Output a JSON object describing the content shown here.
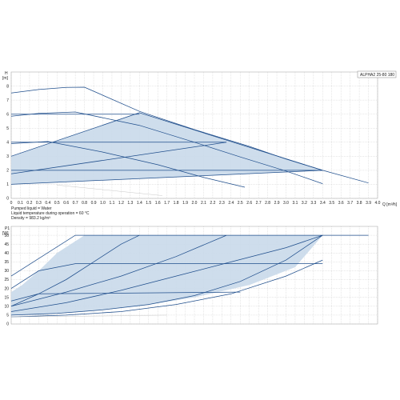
{
  "info": {
    "pumped_liquid": "Pumped liquid = Water",
    "liquid_temperature": "Liquid temperature during operation = 60 °C",
    "density": "Density = 983.2 kg/m³"
  },
  "colors": {
    "curve": "#1f4e8c",
    "fill": "#c9d9ea",
    "grid": "#b0b0b0",
    "faint": "#c8c8c8"
  },
  "chart_data": [
    {
      "type": "line",
      "model_label": "ALPHA2 25-80 180",
      "ylabel_top": "H",
      "ylabel_unit": "[m]",
      "xlabel": "Q [m³/h]",
      "xlim": [
        0,
        4.0
      ],
      "ylim": [
        0,
        9
      ],
      "x_ticks": [
        "0",
        "0.1",
        "0.2",
        "0.3",
        "0.4",
        "0.5",
        "0.6",
        "0.7",
        "0.8",
        "0.9",
        "1.0",
        "1.1",
        "1.2",
        "1.3",
        "1.4",
        "1.5",
        "1.6",
        "1.7",
        "1.8",
        "1.9",
        "2.0",
        "2.1",
        "2.2",
        "2.3",
        "2.4",
        "2.5",
        "2.6",
        "2.7",
        "2.8",
        "2.9",
        "3.0",
        "3.1",
        "3.2",
        "3.3",
        "3.4",
        "3.5",
        "3.6",
        "3.7",
        "3.8",
        "3.9",
        "4.0"
      ],
      "y_ticks": [
        "0",
        "1",
        "2",
        "3",
        "4",
        "5",
        "6",
        "7",
        "8"
      ],
      "grid": true,
      "shaded_area": [
        [
          0,
          1.0
        ],
        [
          3.4,
          2.0
        ],
        [
          1.4,
          6.1
        ],
        [
          0,
          3.0
        ]
      ],
      "series": [
        {
          "x": [
            0,
            0.3,
            0.6,
            0.8,
            1.4,
            2.0,
            2.6,
            3.0,
            3.4,
            3.9
          ],
          "y": [
            7.5,
            7.75,
            7.9,
            7.92,
            6.2,
            4.9,
            3.7,
            2.8,
            2.0,
            1.1
          ]
        },
        {
          "x": [
            0,
            0.3,
            0.7,
            1.4,
            2.0,
            2.5,
            3.0,
            3.4
          ],
          "y": [
            5.85,
            6.05,
            6.15,
            5.2,
            4.0,
            2.95,
            1.95,
            1.05
          ]
        },
        {
          "x": [
            0,
            0.4,
            1.0,
            1.6,
            2.1,
            2.55
          ],
          "y": [
            3.9,
            4.05,
            3.3,
            2.4,
            1.5,
            0.8
          ]
        },
        {
          "x": [
            0,
            1.4
          ],
          "y": [
            6.0,
            6.0
          ]
        },
        {
          "x": [
            0,
            2.35
          ],
          "y": [
            4.0,
            4.0
          ]
        },
        {
          "x": [
            0,
            3.4
          ],
          "y": [
            2.0,
            2.0
          ]
        },
        {
          "x": [
            0,
            1.4
          ],
          "y": [
            3.0,
            6.1
          ]
        },
        {
          "x": [
            0,
            2.35
          ],
          "y": [
            1.75,
            4.0
          ]
        },
        {
          "x": [
            0,
            3.4
          ],
          "y": [
            1.0,
            2.0
          ]
        },
        {
          "x": [
            1.4,
            3.4
          ],
          "y": [
            6.1,
            2.0
          ]
        },
        {
          "x": [
            0.5,
            1.65
          ],
          "y": [
            0.95,
            0.2
          ]
        }
      ]
    },
    {
      "type": "line",
      "ylabel_top": "P1",
      "ylabel_unit": "[W]",
      "xlim": [
        0,
        4.0
      ],
      "ylim": [
        0,
        55
      ],
      "x_ticks": [],
      "y_ticks": [
        "0",
        "5",
        "10",
        "15",
        "20",
        "25",
        "30",
        "35",
        "40",
        "45",
        "50"
      ],
      "grid": true,
      "shaded_area": [
        [
          0,
          5
        ],
        [
          0.3,
          5.2
        ],
        [
          0.8,
          7
        ],
        [
          1.4,
          10
        ],
        [
          2.0,
          15
        ],
        [
          2.6,
          22
        ],
        [
          3.1,
          32
        ],
        [
          3.4,
          50
        ],
        [
          0.8,
          50
        ],
        [
          0.5,
          40
        ],
        [
          0.3,
          30
        ],
        [
          0.12,
          22
        ],
        [
          0,
          18
        ]
      ],
      "series": [
        {
          "x": [
            0,
            0.7,
            3.9
          ],
          "y": [
            27,
            50,
            50
          ]
        },
        {
          "x": [
            0,
            0.3,
            0.7,
            3.4
          ],
          "y": [
            20,
            30,
            34,
            34
          ]
        },
        {
          "x": [
            0,
            0.3,
            2.5
          ],
          "y": [
            10,
            17,
            18
          ]
        },
        {
          "x": [
            0,
            0.3,
            0.6,
            0.9,
            1.2,
            1.4
          ],
          "y": [
            13,
            17,
            25,
            35,
            45,
            50
          ]
        },
        {
          "x": [
            0,
            0.6,
            1.2,
            1.8,
            2.35
          ],
          "y": [
            10,
            18,
            27,
            38,
            50
          ]
        },
        {
          "x": [
            0,
            0.6,
            1.2,
            1.8,
            2.4,
            3.0,
            3.4
          ],
          "y": [
            7,
            12,
            19,
            27,
            35,
            43,
            50
          ]
        },
        {
          "x": [
            0,
            0.5,
            1.0,
            1.5,
            2.0,
            2.5,
            3.0,
            3.4
          ],
          "y": [
            5,
            6,
            8,
            11,
            16,
            24,
            36,
            50
          ]
        },
        {
          "x": [
            0,
            0.6,
            1.2,
            1.8,
            2.4,
            3.0,
            3.4
          ],
          "y": [
            4,
            5,
            7,
            11,
            17,
            27,
            36
          ]
        },
        {
          "x": [
            0,
            1.0,
            1.7
          ],
          "y": [
            4,
            4.5,
            5
          ]
        }
      ]
    }
  ]
}
